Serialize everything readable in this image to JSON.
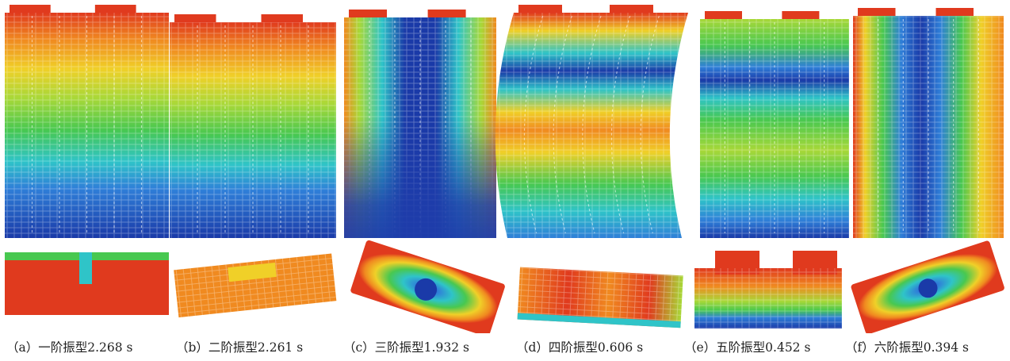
{
  "figure": {
    "panels": [
      {
        "id": "a",
        "caption": "（a）一阶振型2.268 s",
        "period_s": 2.268,
        "mode_order": 1,
        "mode_kind": "translation-sway"
      },
      {
        "id": "b",
        "caption": "（b）二阶振型2.261 s",
        "period_s": 2.261,
        "mode_order": 2,
        "mode_kind": "translation-sway"
      },
      {
        "id": "c",
        "caption": "（c）三阶振型1.932 s",
        "period_s": 1.932,
        "mode_order": 3,
        "mode_kind": "torsion"
      },
      {
        "id": "d",
        "caption": "（d）四阶振型0.606 s",
        "period_s": 0.606,
        "mode_order": 4,
        "mode_kind": "second-order-bending"
      },
      {
        "id": "e",
        "caption": "（e）五阶振型0.452 s",
        "period_s": 0.452,
        "mode_order": 5,
        "mode_kind": "second-order-bending"
      },
      {
        "id": "f",
        "caption": "（f）六阶振型0.394 s",
        "period_s": 0.394,
        "mode_order": 6,
        "mode_kind": "second-order-torsion"
      }
    ],
    "colormap": [
      "#1a3aa8",
      "#2f7fd8",
      "#2fc4c8",
      "#48c850",
      "#a8d838",
      "#f0d028",
      "#f08a20",
      "#e03a1e"
    ]
  }
}
